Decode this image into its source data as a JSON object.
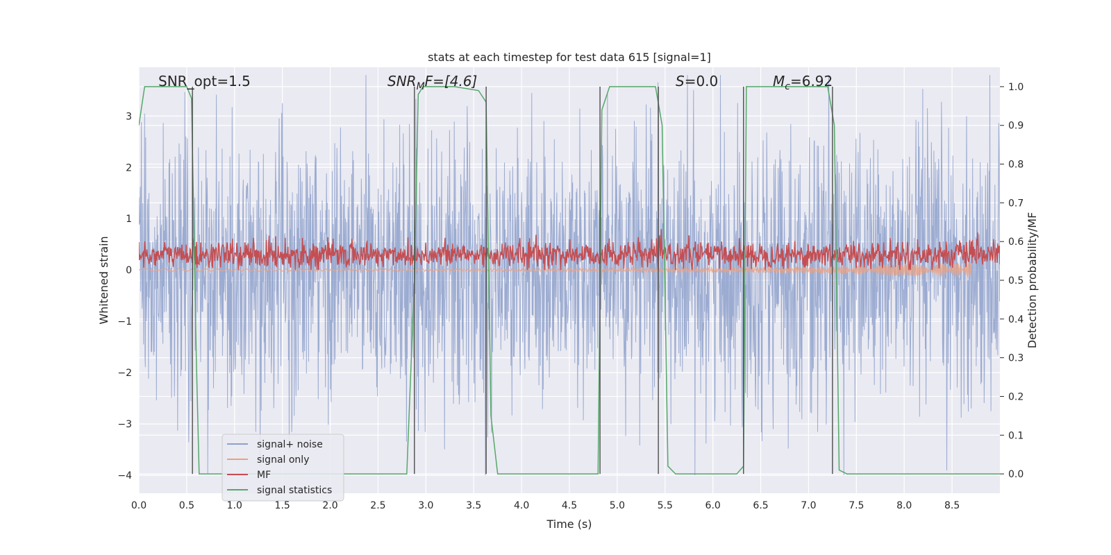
{
  "chart_data": {
    "type": "line",
    "title": "stats at each timestep for test data 615 [signal=1]",
    "xlabel": "Time (s)",
    "ylabel": "Whitened strain",
    "ylabel_right": "Detection probability/MF",
    "xlim": [
      0.0,
      9.0
    ],
    "ylim": [
      -4.35,
      3.95
    ],
    "ylim_right": [
      -0.05,
      1.05
    ],
    "xticks": [
      "0.0",
      "0.5",
      "1.0",
      "1.5",
      "2.0",
      "2.5",
      "3.0",
      "3.5",
      "4.0",
      "4.5",
      "5.0",
      "5.5",
      "6.0",
      "6.5",
      "7.0",
      "7.5",
      "8.0",
      "8.5"
    ],
    "yticks_left": [
      "−4",
      "−3",
      "−2",
      "−1",
      "0",
      "1",
      "2",
      "3"
    ],
    "yticks_right": [
      "0.0",
      "0.1",
      "0.2",
      "0.3",
      "0.4",
      "0.5",
      "0.6",
      "0.7",
      "0.8",
      "0.9",
      "1.0"
    ],
    "grid": true,
    "legend_position": "lower-left",
    "annotations": {
      "snr_opt": "SNR_opt=1.5",
      "snr_mf_main": "SNR",
      "snr_mf_sub": "M",
      "snr_mf_rest": "F=[4.6]",
      "s_main": "S",
      "s_rest": "=0.0",
      "mc_main": "M",
      "mc_sub": "c",
      "mc_rest": "=6.92"
    },
    "vertical_markers": [
      0.56,
      2.88,
      3.63,
      4.82,
      5.43,
      6.32,
      7.25
    ],
    "series": [
      {
        "name": "signal+ noise",
        "color": "#8da0cb",
        "axis": "left",
        "style": "noise",
        "amplitude": 1.3
      },
      {
        "name": "signal only",
        "color": "#e8a184",
        "axis": "left",
        "style": "chirp",
        "end": 8.7
      },
      {
        "name": "MF",
        "color": "#c44e52",
        "axis": "left",
        "style": "mf",
        "mean": 0.3
      },
      {
        "name": "signal statistics",
        "color": "#55a868",
        "axis": "right",
        "x": [
          0.0,
          0.06,
          0.2,
          0.35,
          0.5,
          0.55,
          0.6,
          0.63,
          0.75,
          1.5,
          2.0,
          2.5,
          2.8,
          2.88,
          2.92,
          2.97,
          3.05,
          3.3,
          3.55,
          3.63,
          3.68,
          3.75,
          4.0,
          4.5,
          4.8,
          4.84,
          4.92,
          5.1,
          5.4,
          5.47,
          5.53,
          5.61,
          5.7,
          6.0,
          6.25,
          6.32,
          6.35,
          6.45,
          6.8,
          7.2,
          7.27,
          7.32,
          7.4,
          8.0,
          8.5,
          9.0
        ],
        "y": [
          0.9,
          1.0,
          1.0,
          1.0,
          1.0,
          0.97,
          0.3,
          0.0,
          0.0,
          0.0,
          0.0,
          0.0,
          0.0,
          0.5,
          0.98,
          1.0,
          1.0,
          1.0,
          0.99,
          0.96,
          0.15,
          0.0,
          0.0,
          0.0,
          0.0,
          0.94,
          1.0,
          1.0,
          1.0,
          0.9,
          0.02,
          0.0,
          0.0,
          0.0,
          0.0,
          0.02,
          1.0,
          1.0,
          1.0,
          1.0,
          0.9,
          0.01,
          0.0,
          0.0,
          0.0,
          0.0
        ]
      }
    ]
  }
}
